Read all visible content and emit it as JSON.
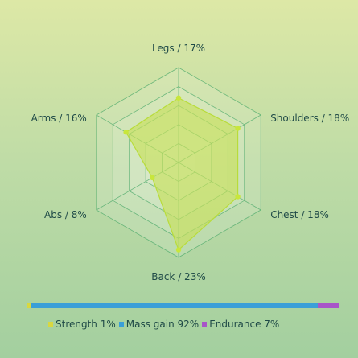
{
  "chart_data": {
    "type": "radar",
    "axes": [
      {
        "label": "Legs / 17%",
        "value": 17
      },
      {
        "label": "Shoulders / 18%",
        "value": 18
      },
      {
        "label": "Chest / 18%",
        "value": 18
      },
      {
        "label": "Back / 23%",
        "value": 23
      },
      {
        "label": "Abs / 8%",
        "value": 8
      },
      {
        "label": "Arms / 16%",
        "value": 16
      }
    ],
    "rmax": 25,
    "rings": 5,
    "colors": {
      "fill": "#c8e05a",
      "stroke": "#b8dc3a",
      "point": "#c8e63c",
      "grid": "#4aa86a",
      "grid_fill": "#ffffff"
    }
  },
  "goal_bar": {
    "segments": [
      {
        "label": "Strength 1%",
        "value": 1,
        "color": "#d8d840"
      },
      {
        "label": "Mass gain 92%",
        "value": 92,
        "color": "#3a9fd8"
      },
      {
        "label": "Endurance 7%",
        "value": 7,
        "color": "#a855c8"
      }
    ]
  }
}
